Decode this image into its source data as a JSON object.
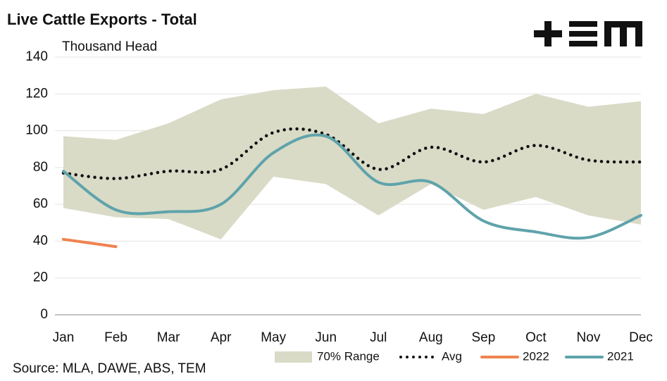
{
  "chart_data": {
    "type": "line",
    "title": "Live Cattle Exports - Total",
    "y_label": "Thousand Head",
    "source": "Source: MLA, DAWE, ABS, TEM",
    "categories": [
      "Jan",
      "Feb",
      "Mar",
      "Apr",
      "May",
      "Jun",
      "Jul",
      "Aug",
      "Sep",
      "Oct",
      "Nov",
      "Dec"
    ],
    "ylim": [
      0,
      140
    ],
    "yticks": [
      0,
      20,
      40,
      60,
      80,
      100,
      120,
      140
    ],
    "grid": true,
    "legend": "bottom",
    "series": [
      {
        "name": "70% Range",
        "color": "#d9dbc7",
        "style": "band",
        "high": [
          97,
          95,
          104,
          117,
          122,
          124,
          104,
          112,
          109,
          120,
          113,
          116
        ],
        "low": [
          58,
          53,
          52,
          41,
          75,
          71,
          54,
          71,
          57,
          64,
          54,
          49
        ]
      },
      {
        "name": "Avg",
        "color": "#111111",
        "style": "dotted",
        "values": [
          77,
          74,
          78,
          79,
          99,
          98,
          79,
          91,
          83,
          92,
          84,
          83
        ]
      },
      {
        "name": "2022",
        "color": "#f0834f",
        "style": "solid",
        "values": [
          41,
          37,
          null,
          null,
          null,
          null,
          null,
          null,
          null,
          null,
          null,
          null
        ]
      },
      {
        "name": "2021",
        "color": "#5fa3ab",
        "style": "solid",
        "values": [
          78,
          57,
          56,
          60,
          88,
          97,
          72,
          72,
          51,
          45,
          42,
          54
        ]
      }
    ]
  }
}
